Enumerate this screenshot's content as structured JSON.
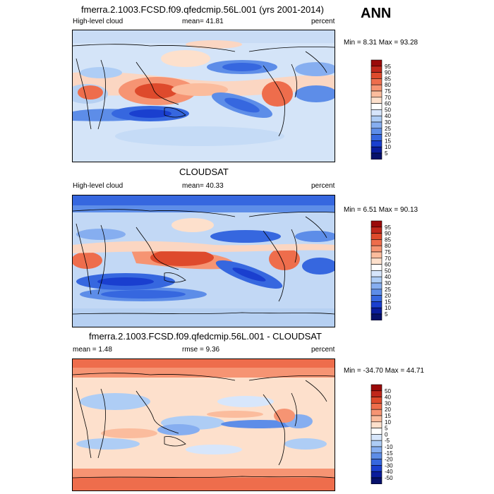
{
  "season": "ANN",
  "panels": [
    {
      "title": "fmerra.2.1003.FCSD.f09.qfedcmip.56L.001 (yrs 2001-2014)",
      "left_label": "High-level cloud",
      "center_label": "mean=  41.81",
      "right_label": "percent",
      "minmax": "Min =   8.31 Max =  93.28",
      "colorbar_labels": [
        "95",
        "90",
        "85",
        "80",
        "75",
        "70",
        "60",
        "50",
        "40",
        "30",
        "25",
        "20",
        "15",
        "10",
        "5"
      ],
      "colorbar_colors": [
        "#9a0a0a",
        "#c0271b",
        "#de4a2c",
        "#ee6d4c",
        "#f69473",
        "#fbbc9d",
        "#fde0cc",
        "#ffffff",
        "#d7e6fb",
        "#aecdf5",
        "#86aef0",
        "#5d8de8",
        "#3667df",
        "#1a3fcf",
        "#0a1c9c",
        "#07116b"
      ],
      "colorbar_type": "fill"
    },
    {
      "title": "CLOUDSAT",
      "left_label": "High-level cloud",
      "center_label": "mean=  40.33",
      "right_label": "percent",
      "minmax": "Min =   6.51 Max =  90.13",
      "colorbar_labels": [
        "95",
        "90",
        "85",
        "80",
        "75",
        "70",
        "60",
        "50",
        "40",
        "30",
        "25",
        "20",
        "15",
        "10",
        "5"
      ],
      "colorbar_colors": [
        "#9a0a0a",
        "#c0271b",
        "#de4a2c",
        "#ee6d4c",
        "#f69473",
        "#fbbc9d",
        "#fde0cc",
        "#ffffff",
        "#d7e6fb",
        "#aecdf5",
        "#86aef0",
        "#5d8de8",
        "#3667df",
        "#1a3fcf",
        "#0a1c9c",
        "#07116b"
      ]
    },
    {
      "title": "fmerra.2.1003.FCSD.f09.qfedcmip.56L.001 - CLOUDSAT",
      "left_label": "mean =   1.48",
      "center_label": "rmse =   9.36",
      "right_label": "percent",
      "minmax": "Min = -34.70 Max =  44.71",
      "colorbar_labels": [
        "50",
        "40",
        "30",
        "20",
        "15",
        "10",
        "5",
        "0",
        "-5",
        "-10",
        "-15",
        "-20",
        "-30",
        "-40",
        "-50"
      ],
      "colorbar_colors": [
        "#9a0a0a",
        "#c0271b",
        "#de4a2c",
        "#ee6d4c",
        "#f69473",
        "#fbbc9d",
        "#fde0cc",
        "#ffffff",
        "#d7e6fb",
        "#aecdf5",
        "#86aef0",
        "#5d8de8",
        "#3667df",
        "#1a3fcf",
        "#0a1c9c",
        "#07116b"
      ]
    }
  ]
}
